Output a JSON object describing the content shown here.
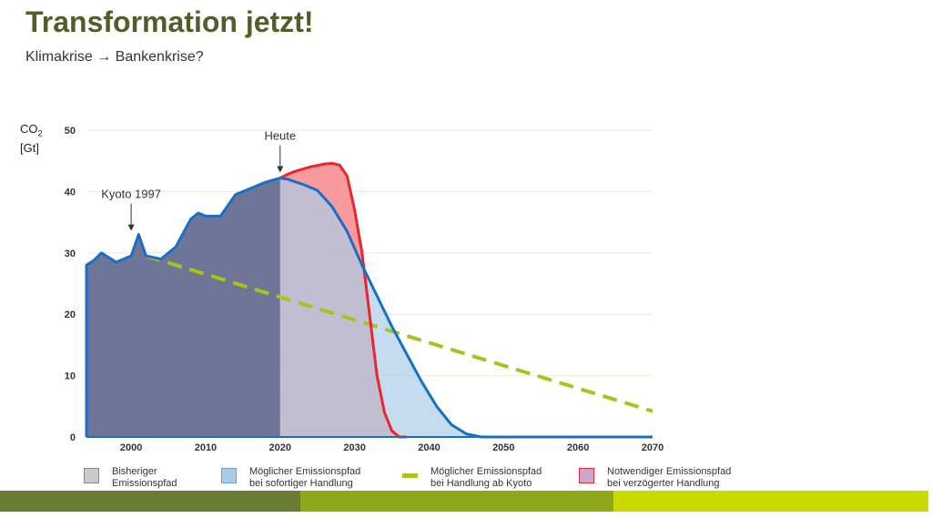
{
  "slide": {
    "title": "Transformation jetzt!",
    "subtitle": "Klimakrise → Bankenkrise?"
  },
  "chart_data": {
    "type": "area",
    "ylabel_line1": "CO",
    "ylabel_sub": "2",
    "ylabel_line2": "[Gt]",
    "xlim": [
      1994,
      2070
    ],
    "ylim": [
      0,
      50
    ],
    "xticks": [
      2000,
      2010,
      2020,
      2030,
      2040,
      2050,
      2060,
      2070
    ],
    "yticks": [
      0,
      10,
      20,
      30,
      40,
      50
    ],
    "grid": true,
    "annotations": [
      {
        "text": "Kyoto 1997",
        "x": 2000,
        "y": 33
      },
      {
        "text": "Heute",
        "x": 2020,
        "y": 42.5
      }
    ],
    "legend": [
      {
        "line1": "Bisheriger",
        "line2": "Emissionspfad",
        "color": "#c9cacb",
        "border": "#888888",
        "kind": "box"
      },
      {
        "line1": "Möglicher Emissionspfad",
        "line2": "bei sofortiger Handlung",
        "color": "#a9cde9",
        "border": "#6c9ec6",
        "kind": "box"
      },
      {
        "line1": "Möglicher Emissionspfad",
        "line2": "bei Handlung ab Kyoto",
        "color": "#a8c21e",
        "border": "#a8c21e",
        "kind": "dash"
      },
      {
        "line1": "Notwendiger Emissionspfad",
        "line2": "bei verzögerter Handlung",
        "color": "#c9a8cf",
        "border": "#e8262b",
        "kind": "box"
      }
    ],
    "series": [
      {
        "name": "Bisheriger Emissionspfad",
        "color": "#6e7597",
        "x": [
          1994,
          1995,
          1996,
          1998,
          1999,
          2000,
          2001,
          2002,
          2004,
          2006,
          2008,
          2009,
          2010,
          2012,
          2014,
          2016,
          2018,
          2020
        ],
        "y": [
          28,
          28.8,
          30,
          28.5,
          29,
          29.5,
          33,
          29.5,
          29,
          31,
          35.5,
          36.5,
          36,
          36,
          39.5,
          40.5,
          41.5,
          42.2
        ]
      },
      {
        "name": "Möglicher Emissionspfad bei sofortiger Handlung",
        "color": "#1870c4",
        "fill": "#a9cde9",
        "x": [
          2020,
          2021,
          2023,
          2025,
          2027,
          2029,
          2031,
          2033,
          2035,
          2037,
          2039,
          2041,
          2043,
          2045,
          2047,
          2050,
          2070
        ],
        "y": [
          42.2,
          42,
          41.2,
          40.2,
          37.5,
          33.5,
          28,
          23,
          18,
          13.5,
          9,
          5,
          2,
          0.5,
          0,
          0,
          0
        ]
      },
      {
        "name": "Möglicher Emissionspfad bei Handlung ab Kyoto",
        "color": "#a8c21e",
        "x": [
          2002,
          2070
        ],
        "y": [
          29.5,
          4.2
        ]
      },
      {
        "name": "Notwendiger Emissionspfad bei verzögerter Handlung",
        "color": "#e8262b",
        "fill": "#f99a9e",
        "x": [
          2020,
          2021,
          2022,
          2024,
          2026,
          2027,
          2028,
          2029,
          2030,
          2031,
          2032,
          2033,
          2034,
          2035,
          2036,
          2037
        ],
        "y": [
          42.2,
          42.8,
          43.3,
          44,
          44.5,
          44.6,
          44.3,
          42.5,
          37,
          30,
          20,
          10,
          4,
          1,
          0,
          0
        ]
      }
    ]
  },
  "footer": {
    "bar_colors": [
      "#6a7b34",
      "#8ea81b",
      "#c8da00"
    ]
  }
}
